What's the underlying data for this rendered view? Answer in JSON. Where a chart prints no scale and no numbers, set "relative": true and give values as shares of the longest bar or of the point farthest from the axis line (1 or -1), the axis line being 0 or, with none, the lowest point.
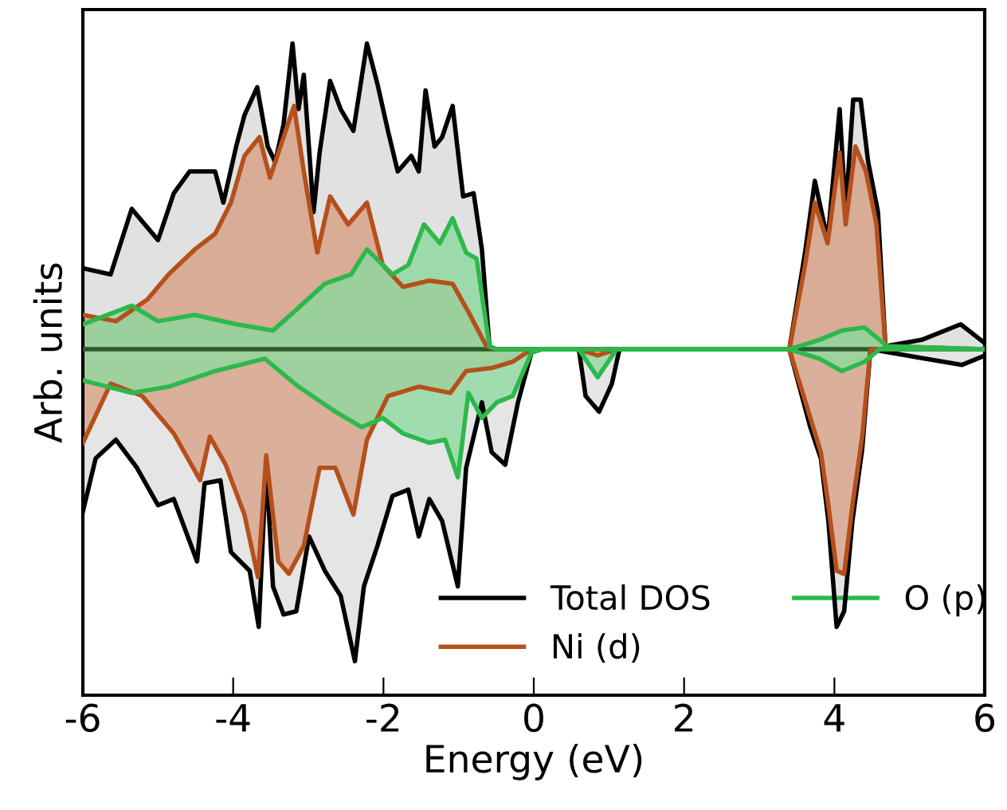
{
  "chart_data": {
    "type": "area",
    "relative": true,
    "xlabel": "Energy (eV)",
    "ylabel": "Arb. units",
    "xlim": [
      -6,
      6
    ],
    "xticks": [
      -6,
      -4,
      -2,
      0,
      2,
      4,
      6
    ],
    "grid": false,
    "legend": "bottom",
    "marker": "none",
    "line_style": "solid",
    "tick_labels": "x",
    "ref_lines": [
      {
        "axis": "y",
        "value": 0,
        "color": "#2f5a2f"
      }
    ],
    "series": [
      {
        "name": "Total DOS",
        "color": "#000000",
        "x": [
          -6,
          -5.63,
          -5.35,
          -5.0,
          -4.79,
          -4.58,
          -4.24,
          -4.13,
          -3.96,
          -3.85,
          -3.68,
          -3.54,
          -3.44,
          -3.33,
          -3.21,
          -3.13,
          -3.06,
          -2.93,
          -2.85,
          -2.71,
          -2.57,
          -2.4,
          -2.22,
          -2.08,
          -1.94,
          -1.81,
          -1.63,
          -1.53,
          -1.44,
          -1.32,
          -1.22,
          -1.08,
          -0.94,
          -0.8,
          -0.69,
          -0.59,
          -0.5,
          3.4,
          3.61,
          3.74,
          3.91,
          4.07,
          4.15,
          4.25,
          4.35,
          4.45,
          4.58,
          4.68,
          5.16,
          5.68,
          6.0
        ],
        "values": [
          0.26,
          0.24,
          0.45,
          0.35,
          0.5,
          0.57,
          0.57,
          0.47,
          0.65,
          0.75,
          0.84,
          0.65,
          0.6,
          0.72,
          0.98,
          0.77,
          0.88,
          0.44,
          0.63,
          0.86,
          0.77,
          0.7,
          0.98,
          0.85,
          0.7,
          0.57,
          0.62,
          0.57,
          0.83,
          0.65,
          0.68,
          0.78,
          0.49,
          0.5,
          0.32,
          0.01,
          0,
          0,
          0.31,
          0.54,
          0.35,
          0.77,
          0.44,
          0.8,
          0.8,
          0.6,
          0.44,
          0.01,
          0.03,
          0.08,
          0.02
        ]
      },
      {
        "color": "#000000",
        "x": [
          -6,
          -5.83,
          -5.56,
          -5.28,
          -5.0,
          -4.79,
          -4.48,
          -4.38,
          -4.17,
          -4.03,
          -3.78,
          -3.66,
          -3.56,
          -3.47,
          -3.33,
          -3.16,
          -2.99,
          -2.78,
          -2.57,
          -2.38,
          -2.26,
          -2.08,
          -1.88,
          -1.67,
          -1.53,
          -1.39,
          -1.22,
          -1.01,
          -0.9,
          -0.69,
          -0.56,
          -0.38,
          -0.21,
          -0.03,
          0.1,
          0.6,
          0.69,
          0.87,
          1.04,
          1.14,
          3.4,
          3.68,
          3.82,
          3.92,
          4.03,
          4.13,
          4.24,
          4.37,
          4.48,
          5.2,
          5.7,
          6.0
        ],
        "values": [
          -0.52,
          -0.35,
          -0.29,
          -0.38,
          -0.5,
          -0.48,
          -0.68,
          -0.43,
          -0.42,
          -0.65,
          -0.71,
          -0.89,
          -0.37,
          -0.76,
          -0.85,
          -0.84,
          -0.6,
          -0.71,
          -0.79,
          -1.0,
          -0.76,
          -0.63,
          -0.47,
          -0.45,
          -0.6,
          -0.48,
          -0.55,
          -0.76,
          -0.38,
          -0.17,
          -0.33,
          -0.37,
          -0.17,
          -0.01,
          0,
          0,
          -0.15,
          -0.2,
          -0.11,
          0,
          0,
          -0.25,
          -0.35,
          -0.55,
          -0.89,
          -0.84,
          -0.55,
          -0.32,
          0,
          -0.03,
          -0.05,
          -0.02
        ]
      },
      {
        "name": "Ni (d)",
        "color": "#b5501c",
        "x": [
          -6,
          -5.56,
          -5.14,
          -4.86,
          -4.51,
          -4.24,
          -4.03,
          -3.85,
          -3.65,
          -3.51,
          -3.19,
          -3.06,
          -2.88,
          -2.71,
          -2.47,
          -2.22,
          -2.01,
          -1.74,
          -1.39,
          -1.08,
          -0.87,
          -0.63,
          -0.5,
          3.4,
          3.61,
          3.74,
          3.91,
          4.07,
          4.15,
          4.28,
          4.42,
          4.56,
          4.68,
          6.0
        ],
        "values": [
          0.11,
          0.09,
          0.16,
          0.24,
          0.32,
          0.37,
          0.47,
          0.62,
          0.68,
          0.55,
          0.78,
          0.57,
          0.31,
          0.49,
          0.4,
          0.47,
          0.27,
          0.2,
          0.22,
          0.21,
          0.12,
          0.01,
          0,
          0,
          0.27,
          0.47,
          0.34,
          0.63,
          0.4,
          0.65,
          0.57,
          0.4,
          0.01,
          0
        ]
      },
      {
        "color": "#b5501c",
        "x": [
          -6,
          -5.63,
          -5.21,
          -4.79,
          -4.44,
          -4.31,
          -4.1,
          -3.85,
          -3.67,
          -3.56,
          -3.4,
          -3.26,
          -3.06,
          -2.85,
          -2.64,
          -2.4,
          -2.22,
          -1.94,
          -1.53,
          -1.11,
          -0.9,
          -0.56,
          -0.28,
          -0.03,
          0.6,
          0.85,
          1.1,
          3.4,
          3.68,
          3.82,
          3.92,
          4.03,
          4.13,
          4.24,
          4.37,
          4.48,
          6.0
        ],
        "values": [
          -0.3,
          -0.11,
          -0.15,
          -0.27,
          -0.42,
          -0.28,
          -0.37,
          -0.53,
          -0.73,
          -0.34,
          -0.68,
          -0.72,
          -0.63,
          -0.38,
          -0.38,
          -0.53,
          -0.29,
          -0.15,
          -0.12,
          -0.14,
          -0.07,
          -0.06,
          -0.04,
          0,
          0,
          -0.02,
          0,
          0,
          -0.22,
          -0.33,
          -0.5,
          -0.71,
          -0.72,
          -0.5,
          -0.28,
          0,
          0
        ]
      },
      {
        "name": "O (p)",
        "color": "#2db84c",
        "x": [
          -6,
          -5.35,
          -5.0,
          -4.51,
          -3.96,
          -3.47,
          -3.19,
          -2.78,
          -2.43,
          -2.22,
          -1.88,
          -1.67,
          -1.46,
          -1.25,
          -1.08,
          -0.9,
          -0.76,
          -0.59,
          -0.5,
          3.4,
          3.8,
          4.1,
          4.4,
          4.7,
          6.0
        ],
        "values": [
          0.08,
          0.14,
          0.09,
          0.11,
          0.08,
          0.06,
          0.12,
          0.21,
          0.24,
          0.32,
          0.24,
          0.27,
          0.4,
          0.34,
          0.42,
          0.31,
          0.29,
          0.01,
          0,
          0,
          0.03,
          0.06,
          0.07,
          0.01,
          0
        ]
      },
      {
        "color": "#2db84c",
        "x": [
          -6,
          -5.35,
          -4.86,
          -4.24,
          -3.58,
          -3.13,
          -2.64,
          -2.29,
          -2.01,
          -1.74,
          -1.39,
          -1.18,
          -1.01,
          -0.87,
          -0.69,
          -0.49,
          -0.28,
          -0.03,
          0.1,
          0.6,
          0.85,
          1.1,
          3.4,
          3.8,
          4.1,
          4.4,
          4.6,
          6.0
        ],
        "values": [
          -0.1,
          -0.14,
          -0.12,
          -0.07,
          -0.03,
          -0.12,
          -0.2,
          -0.25,
          -0.22,
          -0.27,
          -0.3,
          -0.29,
          -0.41,
          -0.14,
          -0.22,
          -0.17,
          -0.15,
          -0.01,
          0,
          0,
          -0.09,
          0,
          0,
          -0.03,
          -0.07,
          -0.04,
          0,
          0
        ]
      }
    ]
  }
}
